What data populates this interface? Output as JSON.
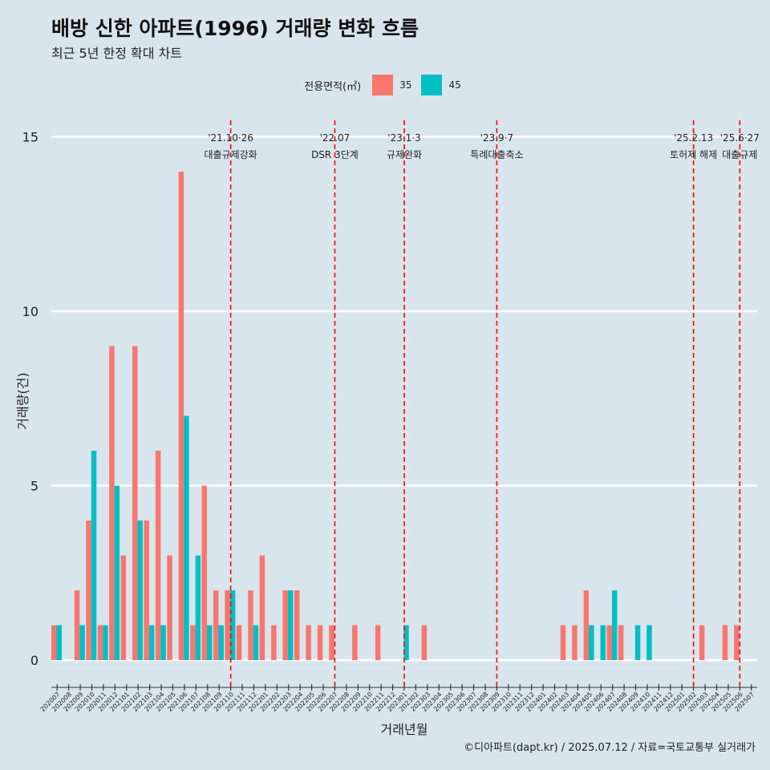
{
  "title": "배방 신한 아파트(1996) 거래량 변화 흐름",
  "subtitle": "최근 5년 한정 확대 차트",
  "legend": {
    "title": "전용면적(㎡)",
    "items": [
      {
        "label": "35",
        "color": "#f8766d"
      },
      {
        "label": "45",
        "color": "#00bfc4"
      }
    ]
  },
  "caption": "©디아파트(dapt.kr) / 2025.07.12 / 자료=국토교통부 실거래가",
  "chart_data": {
    "type": "bar",
    "xlabel": "거래년월",
    "ylabel": "거래량(건)",
    "ylim": [
      0,
      15
    ],
    "yticks": [
      0,
      5,
      10,
      15
    ],
    "categories": [
      "202007",
      "202008",
      "202009",
      "202010",
      "202011",
      "202012",
      "202101",
      "202102",
      "202103",
      "202104",
      "202105",
      "202106",
      "202107",
      "202108",
      "202109",
      "202110",
      "202111",
      "202112",
      "202201",
      "202202",
      "202203",
      "202204",
      "202205",
      "202206",
      "202207",
      "202208",
      "202209",
      "202210",
      "202211",
      "202212",
      "202301",
      "202302",
      "202303",
      "202304",
      "202305",
      "202306",
      "202307",
      "202308",
      "202309",
      "202310",
      "202311",
      "202312",
      "202401",
      "202402",
      "202403",
      "202404",
      "202405",
      "202406",
      "202407",
      "202408",
      "202409",
      "202410",
      "202411",
      "202412",
      "202501",
      "202502",
      "202503",
      "202504",
      "202505",
      "202506",
      "202507"
    ],
    "series": [
      {
        "name": "35",
        "color": "#f8766d",
        "values": [
          1,
          0,
          2,
          4,
          1,
          9,
          3,
          9,
          4,
          6,
          3,
          14,
          1,
          5,
          2,
          2,
          1,
          2,
          3,
          1,
          2,
          2,
          1,
          1,
          1,
          0,
          1,
          0,
          1,
          0,
          0,
          0,
          1,
          0,
          0,
          0,
          0,
          0,
          0,
          0,
          0,
          0,
          0,
          0,
          1,
          1,
          2,
          0,
          1,
          1,
          0,
          0,
          0,
          0,
          0,
          0,
          1,
          0,
          1,
          1,
          0
        ]
      },
      {
        "name": "45",
        "color": "#00bfc4",
        "values": [
          1,
          0,
          1,
          6,
          1,
          5,
          0,
          4,
          1,
          1,
          0,
          7,
          3,
          1,
          1,
          2,
          0,
          1,
          0,
          0,
          2,
          0,
          0,
          0,
          0,
          0,
          0,
          0,
          0,
          0,
          1,
          0,
          0,
          0,
          0,
          0,
          0,
          0,
          0,
          0,
          0,
          0,
          0,
          0,
          0,
          0,
          1,
          1,
          2,
          0,
          1,
          1,
          0,
          0,
          0,
          0,
          0,
          0,
          0,
          0,
          0
        ]
      }
    ],
    "events": [
      {
        "category": "202110",
        "line1": "'21.10·26",
        "line2": "대출규제강화"
      },
      {
        "category": "202207",
        "line1": "'22.07",
        "line2": "DSR 3단계"
      },
      {
        "category": "202301",
        "line1": "'23.1·3",
        "line2": "규제완화"
      },
      {
        "category": "202309",
        "line1": "'23.9·7",
        "line2": "특례대출축소"
      },
      {
        "category": "202502",
        "line1": "'25.2.13",
        "line2": "토허제 해제"
      },
      {
        "category": "202506",
        "line1": "'25.6·27",
        "line2": "대출규제"
      }
    ]
  }
}
